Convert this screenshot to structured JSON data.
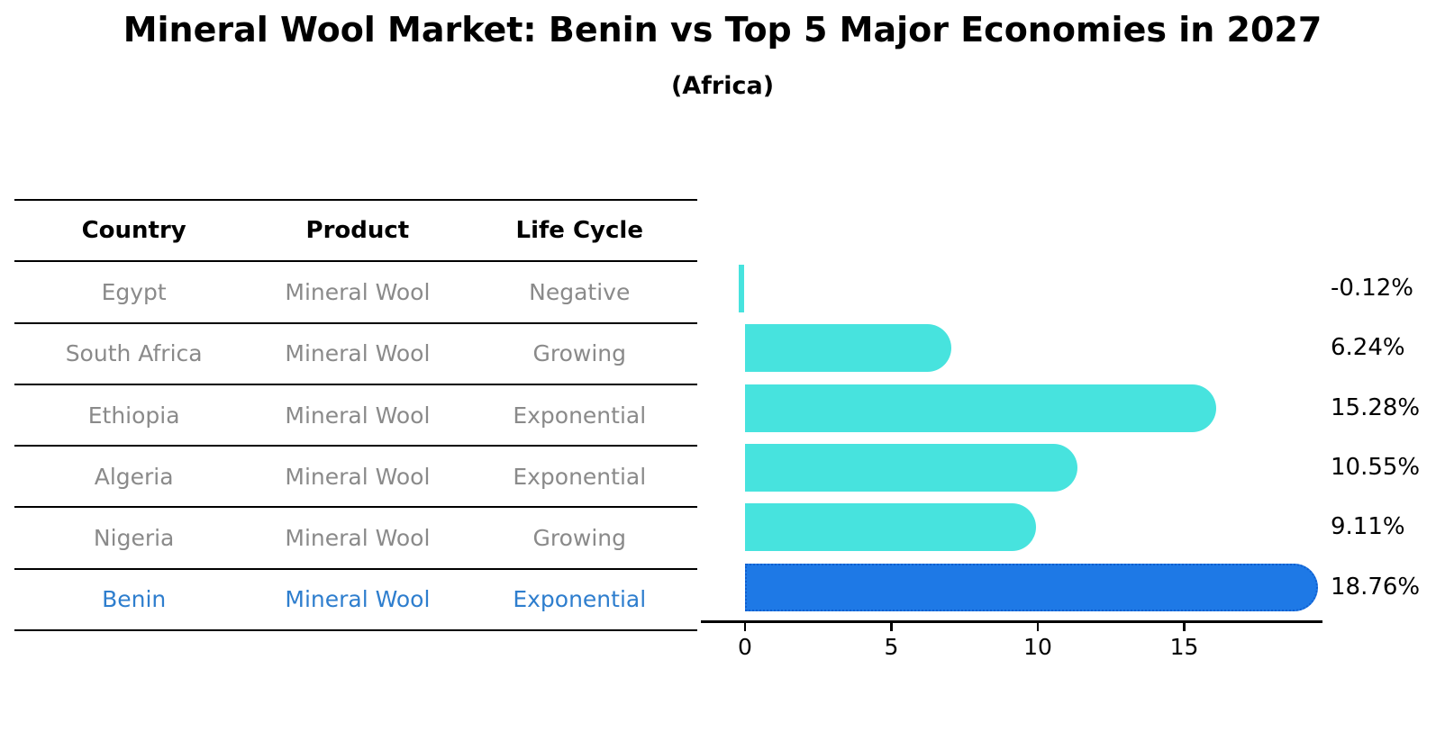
{
  "title": "Mineral Wool Market: Benin vs Top 5 Major Economies in 2027",
  "subtitle": "(Africa)",
  "table": {
    "headers": [
      "Country",
      "Product",
      "Life Cycle"
    ],
    "rows": [
      {
        "country": "Egypt",
        "product": "Mineral Wool",
        "life_cycle": "Negative",
        "highlight": false
      },
      {
        "country": "South Africa",
        "product": "Mineral Wool",
        "life_cycle": "Growing",
        "highlight": false
      },
      {
        "country": "Ethiopia",
        "product": "Mineral Wool",
        "life_cycle": "Exponential",
        "highlight": false
      },
      {
        "country": "Algeria",
        "product": "Mineral Wool",
        "life_cycle": "Exponential",
        "highlight": false
      },
      {
        "country": "Nigeria",
        "product": "Mineral Wool",
        "life_cycle": "Growing",
        "highlight": false
      },
      {
        "country": "Benin",
        "product": "Mineral Wool",
        "life_cycle": "Exponential",
        "highlight": true
      }
    ]
  },
  "chart_data": {
    "type": "bar",
    "orientation": "horizontal",
    "title": "Mineral Wool Market: Benin vs Top 5 Major Economies in 2027",
    "subtitle": "(Africa)",
    "categories": [
      "Egypt",
      "South Africa",
      "Ethiopia",
      "Algeria",
      "Nigeria",
      "Benin"
    ],
    "values": [
      -0.12,
      6.24,
      15.28,
      10.55,
      9.11,
      18.76
    ],
    "value_labels": [
      "-0.12%",
      "6.24%",
      "15.28%",
      "10.55%",
      "9.11%",
      "18.76%"
    ],
    "x_tick_labels": [
      "0",
      "5",
      "10",
      "15"
    ],
    "x_tick_values": [
      0,
      5,
      10,
      15
    ],
    "xlim": [
      -1.5,
      19.7
    ],
    "grid": false,
    "legend": false,
    "bar_color": "#47e3de",
    "highlight_index": 5,
    "highlight_bar_color": "#1e79e6",
    "highlight_border_color": "#0f5fd0",
    "highlight_text_color": "#2e7ece",
    "body_text_color": "#8a8a8a"
  }
}
